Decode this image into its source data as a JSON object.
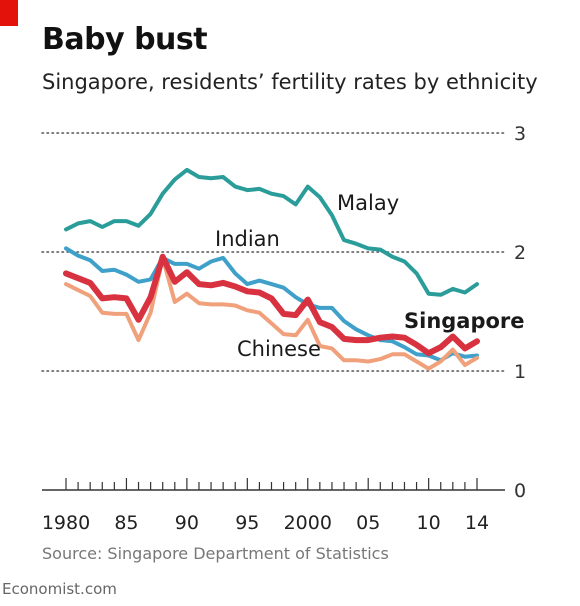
{
  "header": {
    "title": "Baby bust",
    "subtitle": "Singapore, residents’ fertility rates by ethnicity"
  },
  "footer": {
    "source": "Source: Singapore Department of Statistics",
    "brand": "Economist.com"
  },
  "colors": {
    "malay": "#2a9d9a",
    "indian": "#3fa0c9",
    "chinese": "#f0a07a",
    "singapore": "#d8313f",
    "grid": "#555555",
    "axis": "#333333"
  },
  "chart_data": {
    "type": "line",
    "title": "Baby bust",
    "subtitle": "Singapore, residents’ fertility rates by ethnicity",
    "xlabel": "",
    "ylabel": "",
    "xlim": [
      1980,
      2014
    ],
    "ylim": [
      0,
      3
    ],
    "y_ticks": [
      0,
      1,
      2,
      3
    ],
    "y_tick_labels": [
      "0",
      "1",
      "2",
      "3"
    ],
    "x_ticks": [
      1980,
      1985,
      1990,
      1995,
      2000,
      2005,
      2010,
      2014
    ],
    "x_tick_labels": [
      "1980",
      "85",
      "90",
      "95",
      "2000",
      "05",
      "10",
      "14"
    ],
    "grid": "horizontal dotted",
    "x": [
      1980,
      1981,
      1982,
      1983,
      1984,
      1985,
      1986,
      1987,
      1988,
      1989,
      1990,
      1991,
      1992,
      1993,
      1994,
      1995,
      1996,
      1997,
      1998,
      1999,
      2000,
      2001,
      2002,
      2003,
      2004,
      2005,
      2006,
      2007,
      2008,
      2009,
      2010,
      2011,
      2012,
      2013,
      2014
    ],
    "series": [
      {
        "name": "Malay",
        "key": "malay",
        "values": [
          2.19,
          2.24,
          2.26,
          2.21,
          2.26,
          2.26,
          2.22,
          2.32,
          2.49,
          2.61,
          2.69,
          2.63,
          2.62,
          2.63,
          2.55,
          2.52,
          2.53,
          2.49,
          2.47,
          2.4,
          2.55,
          2.46,
          2.31,
          2.1,
          2.07,
          2.03,
          2.02,
          1.96,
          1.92,
          1.82,
          1.65,
          1.64,
          1.69,
          1.66,
          1.73
        ]
      },
      {
        "name": "Indian",
        "key": "indian",
        "values": [
          2.03,
          1.97,
          1.93,
          1.84,
          1.85,
          1.81,
          1.75,
          1.77,
          1.95,
          1.9,
          1.9,
          1.86,
          1.92,
          1.95,
          1.82,
          1.73,
          1.76,
          1.73,
          1.7,
          1.62,
          1.56,
          1.53,
          1.53,
          1.42,
          1.35,
          1.3,
          1.26,
          1.25,
          1.2,
          1.14,
          1.13,
          1.09,
          1.15,
          1.12,
          1.13
        ]
      },
      {
        "name": "Chinese",
        "key": "chinese",
        "values": [
          1.73,
          1.68,
          1.63,
          1.49,
          1.48,
          1.48,
          1.26,
          1.49,
          1.95,
          1.58,
          1.65,
          1.57,
          1.56,
          1.56,
          1.55,
          1.51,
          1.49,
          1.4,
          1.31,
          1.3,
          1.43,
          1.21,
          1.19,
          1.09,
          1.09,
          1.08,
          1.1,
          1.14,
          1.14,
          1.08,
          1.02,
          1.08,
          1.18,
          1.05,
          1.11
        ]
      },
      {
        "name": "Singapore",
        "key": "singapore",
        "values": [
          1.82,
          1.78,
          1.74,
          1.61,
          1.62,
          1.61,
          1.43,
          1.62,
          1.96,
          1.75,
          1.83,
          1.73,
          1.72,
          1.74,
          1.71,
          1.67,
          1.66,
          1.61,
          1.48,
          1.47,
          1.6,
          1.41,
          1.37,
          1.27,
          1.26,
          1.26,
          1.28,
          1.29,
          1.28,
          1.22,
          1.15,
          1.2,
          1.29,
          1.19,
          1.25
        ]
      }
    ],
    "annotations": [
      {
        "text": "Malay",
        "series": "malay"
      },
      {
        "text": "Indian",
        "series": "indian"
      },
      {
        "text": "Chinese",
        "series": "chinese"
      },
      {
        "text": "Singapore",
        "series": "singapore",
        "bold": true
      }
    ]
  }
}
